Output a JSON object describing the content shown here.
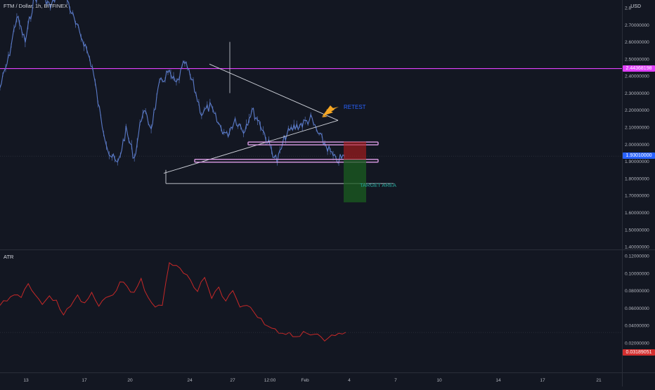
{
  "header": {
    "symbol_title": "FTM / Dollar, 1h, BITFINEX",
    "currency": "USD"
  },
  "price_axis": {
    "ticks": [
      "2.80000000",
      "2.70000000",
      "2.60000000",
      "2.50000000",
      "2.40000000",
      "2.30000000",
      "2.20000000",
      "2.10000000",
      "2.00000000",
      "1.90000000",
      "1.80000000",
      "1.70000000",
      "1.60000000",
      "1.50000000",
      "1.40000000"
    ],
    "tick_values": [
      2.8,
      2.7,
      2.6,
      2.5,
      2.4,
      2.3,
      2.2,
      2.1,
      2.0,
      1.9,
      1.8,
      1.7,
      1.6,
      1.5,
      1.4
    ],
    "resistance_tag": "2.44368198",
    "current_price_tag": "1.93010000"
  },
  "atr_panel": {
    "title": "ATR",
    "ticks": [
      "0.12000000",
      "0.10000000",
      "0.08000000",
      "0.06000000",
      "0.04000000",
      "0.02000000"
    ],
    "tick_values": [
      0.12,
      0.1,
      0.08,
      0.06,
      0.04,
      0.02
    ],
    "current_tag": "0.03189051"
  },
  "time_axis": {
    "labels": [
      "13",
      "17",
      "20",
      "24",
      "27",
      "12:00",
      "Feb",
      "4",
      "7",
      "10",
      "14",
      "17",
      "21"
    ]
  },
  "annotations": {
    "retest": "RETEST",
    "target_area": "TARGET AREA"
  },
  "colors": {
    "background": "#131722",
    "price_line": "#5b7bc9",
    "atr_line": "#c62828",
    "resistance": "#e040fb",
    "zone_line": "#ce93d8",
    "current_price": "#2962ff",
    "stop_zone": "#b71c1c",
    "target_zone": "#1b5e20",
    "arrow": "#f5a623",
    "trendline": "#d1d4dc"
  },
  "chart_data": [
    {
      "type": "line",
      "title": "FTM / Dollar, 1h, BITFINEX",
      "x_tick_labels": [
        "13",
        "17",
        "20",
        "24",
        "27",
        "12:00",
        "Feb",
        "4",
        "7",
        "10",
        "14",
        "17",
        "21"
      ],
      "ylim": [
        1.38,
        2.86
      ],
      "series": [
        {
          "values": [
            2.33,
            2.5,
            2.75,
            2.6,
            2.84,
            2.9,
            2.8,
            2.9,
            2.85,
            2.7,
            2.6,
            2.45,
            2.15,
            1.95,
            1.88,
            2.08,
            1.92,
            2.2,
            2.1,
            2.35,
            2.42,
            2.35,
            2.48,
            2.35,
            2.18,
            2.22,
            2.12,
            2.05,
            2.15,
            2.08,
            2.2,
            2.12,
            2.0,
            1.9,
            2.05,
            2.1,
            2.12,
            2.15,
            2.05,
            1.98,
            1.9,
            1.93
          ]
        }
      ]
    },
    {
      "type": "line",
      "title": "ATR",
      "ylim": [
        0.014,
        0.124
      ],
      "series": [
        {
          "values": [
            0.063,
            0.068,
            0.075,
            0.072,
            0.088,
            0.075,
            0.064,
            0.074,
            0.069,
            0.052,
            0.062,
            0.075,
            0.066,
            0.078,
            0.062,
            0.072,
            0.075,
            0.09,
            0.085,
            0.078,
            0.094,
            0.072,
            0.061,
            0.063,
            0.112,
            0.109,
            0.1,
            0.092,
            0.079,
            0.095,
            0.071,
            0.084,
            0.068,
            0.08,
            0.061,
            0.063,
            0.055,
            0.048,
            0.039,
            0.036,
            0.031,
            0.032,
            0.027,
            0.033,
            0.029,
            0.03,
            0.022,
            0.029,
            0.031,
            0.032
          ]
        }
      ]
    }
  ]
}
